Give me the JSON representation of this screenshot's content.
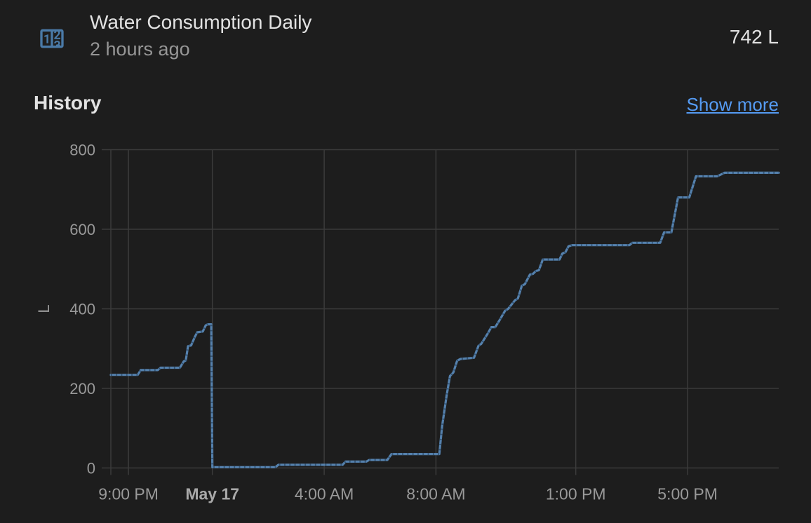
{
  "header": {
    "title": "Water Consumption Daily",
    "last_changed": "2 hours ago",
    "state": "742 L",
    "icon": "counter-icon"
  },
  "history": {
    "heading": "History",
    "show_more_label": "Show more"
  },
  "colors": {
    "background": "#1d1d1d",
    "text_primary": "#e2e2e2",
    "text_secondary": "#969696",
    "link": "#559bf3",
    "icon_blue": "#4a7aa7",
    "line": "#5581ad",
    "line_dots": "#2b4866",
    "gridline": "#3b3b3b",
    "axis_label": "#999999",
    "axis_label_emph": "#a9a9a9"
  },
  "chart_data": {
    "type": "line",
    "title": "History",
    "xlabel": "",
    "ylabel": "L",
    "ylim": [
      0,
      800
    ],
    "yticks": [
      0,
      200,
      400,
      600,
      800
    ],
    "grid": true,
    "legend": false,
    "x_hours_range": [
      -3.63,
      20.26
    ],
    "xticks": [
      {
        "label": "9:00 PM",
        "hour": -3,
        "bold": false
      },
      {
        "label": "May 17",
        "hour": 0,
        "bold": true
      },
      {
        "label": "4:00 AM",
        "hour": 4,
        "bold": false
      },
      {
        "label": "8:00 AM",
        "hour": 8,
        "bold": false
      },
      {
        "label": "1:00 PM",
        "hour": 13,
        "bold": false
      },
      {
        "label": "5:00 PM",
        "hour": 17,
        "bold": false
      }
    ],
    "series": [
      {
        "name": "Water Consumption Daily",
        "unit": "L",
        "current": 742,
        "points": [
          [
            -3.63,
            234
          ],
          [
            -2.67,
            234
          ],
          [
            -2.56,
            246
          ],
          [
            -1.95,
            246
          ],
          [
            -1.85,
            252
          ],
          [
            -1.16,
            252
          ],
          [
            -1.02,
            268
          ],
          [
            -0.95,
            270
          ],
          [
            -0.87,
            306
          ],
          [
            -0.76,
            308
          ],
          [
            -0.62,
            330
          ],
          [
            -0.54,
            341
          ],
          [
            -0.34,
            343
          ],
          [
            -0.24,
            358
          ],
          [
            -0.17,
            361
          ],
          [
            -0.04,
            361
          ],
          [
            0.0,
            2
          ],
          [
            2.26,
            2
          ],
          [
            2.36,
            8
          ],
          [
            4.66,
            8
          ],
          [
            4.76,
            16
          ],
          [
            5.51,
            16
          ],
          [
            5.61,
            20
          ],
          [
            6.26,
            20
          ],
          [
            6.41,
            35
          ],
          [
            8.12,
            35
          ],
          [
            8.22,
            105
          ],
          [
            8.38,
            182
          ],
          [
            8.5,
            231
          ],
          [
            8.62,
            240
          ],
          [
            8.76,
            270
          ],
          [
            8.88,
            274
          ],
          [
            9.36,
            277
          ],
          [
            9.52,
            307
          ],
          [
            9.62,
            312
          ],
          [
            9.86,
            339
          ],
          [
            9.98,
            354
          ],
          [
            10.12,
            354
          ],
          [
            10.27,
            371
          ],
          [
            10.47,
            395
          ],
          [
            10.58,
            400
          ],
          [
            10.82,
            421
          ],
          [
            10.93,
            426
          ],
          [
            11.07,
            458
          ],
          [
            11.18,
            462
          ],
          [
            11.36,
            486
          ],
          [
            11.47,
            488
          ],
          [
            11.57,
            495
          ],
          [
            11.68,
            497
          ],
          [
            11.82,
            524
          ],
          [
            12.42,
            524
          ],
          [
            12.52,
            539
          ],
          [
            12.63,
            542
          ],
          [
            12.74,
            557
          ],
          [
            12.87,
            560
          ],
          [
            14.92,
            560
          ],
          [
            15.02,
            566
          ],
          [
            16.02,
            566
          ],
          [
            16.16,
            592
          ],
          [
            16.42,
            592
          ],
          [
            16.66,
            680
          ],
          [
            17.06,
            680
          ],
          [
            17.3,
            733
          ],
          [
            18.06,
            733
          ],
          [
            18.32,
            742
          ],
          [
            20.26,
            742
          ]
        ]
      }
    ]
  }
}
